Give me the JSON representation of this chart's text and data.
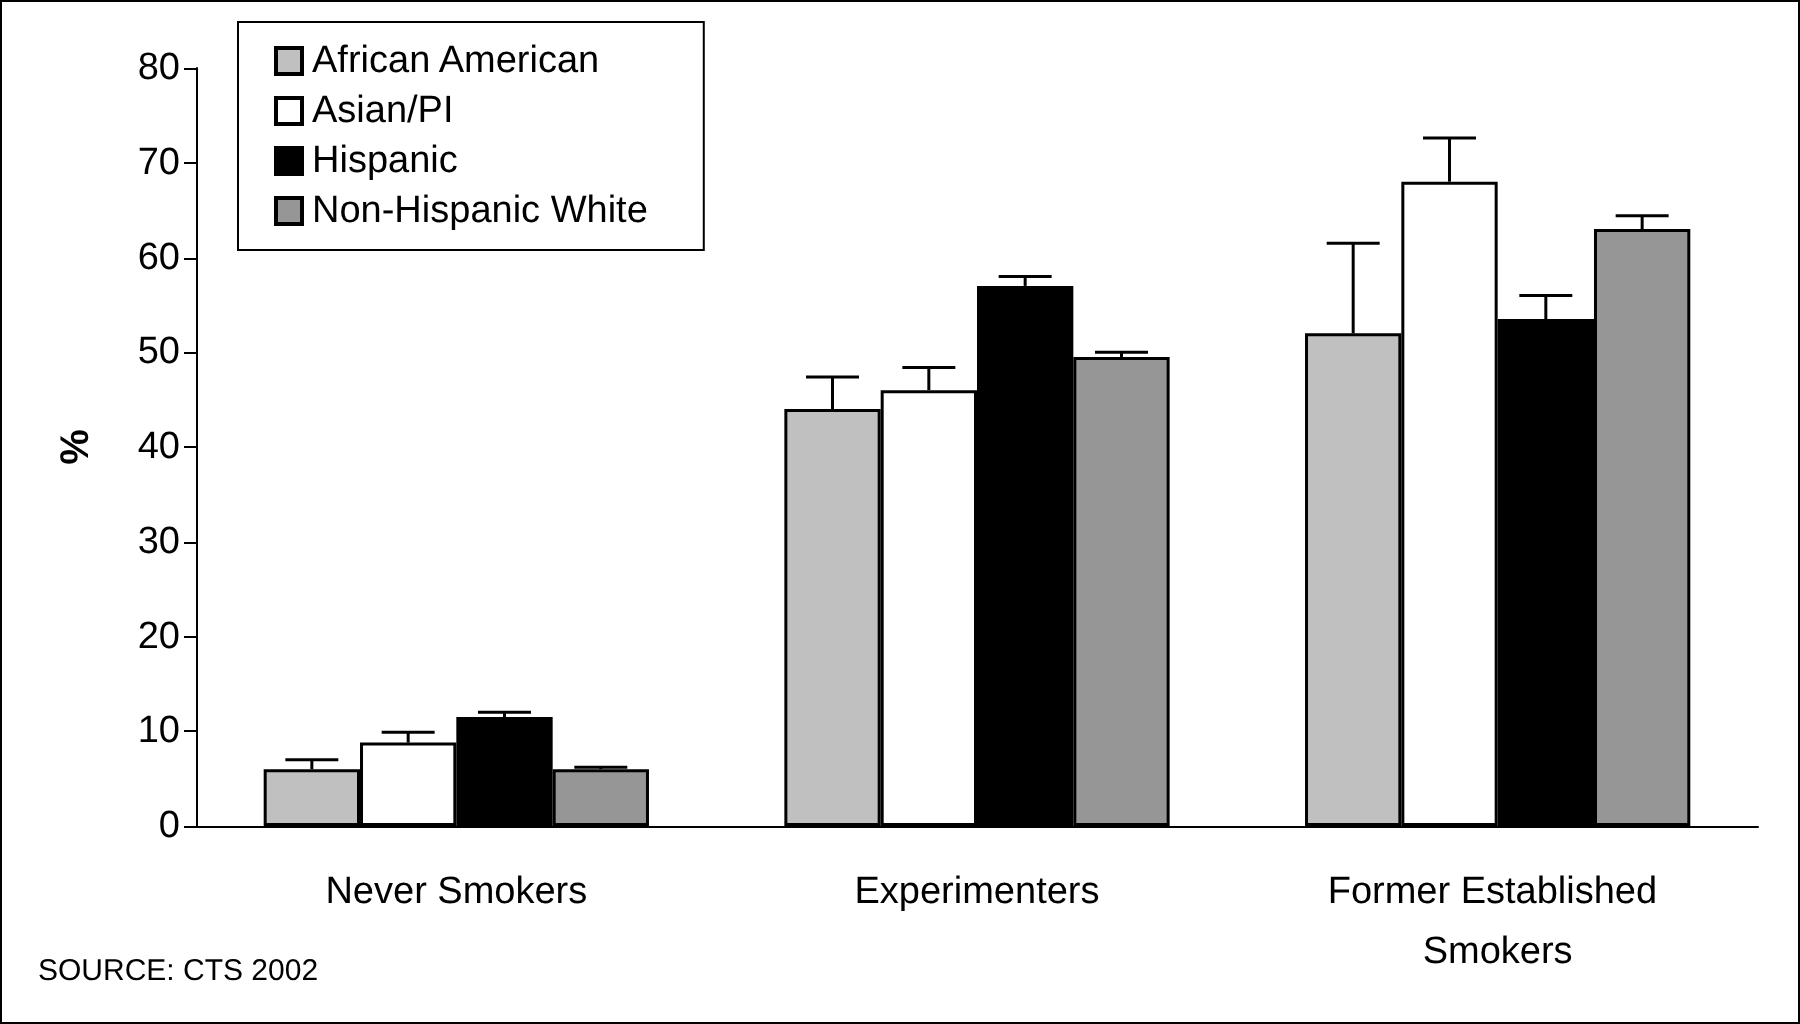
{
  "chart_data": {
    "type": "bar",
    "ylabel": "%",
    "categories": [
      "Never Smokers",
      "Experimenters",
      "Former Established Smokers"
    ],
    "series": [
      {
        "name": "African American",
        "color": "#c0c0c0",
        "values": [
          6,
          44,
          52
        ],
        "errors": [
          1,
          3.4,
          9.5
        ]
      },
      {
        "name": "Asian/PI",
        "color": "#ffffff",
        "values": [
          8.8,
          46,
          68
        ],
        "errors": [
          1.1,
          2.4,
          4.6
        ]
      },
      {
        "name": "Hispanic",
        "color": "#000000",
        "values": [
          11.5,
          57,
          53.5
        ],
        "errors": [
          0.5,
          1,
          2.5
        ]
      },
      {
        "name": "Non-Hispanic White",
        "color": "#969696",
        "values": [
          6,
          49.5,
          63
        ],
        "errors": [
          0.2,
          0.5,
          1.4
        ]
      }
    ],
    "ylim": [
      0,
      80
    ],
    "yticks": [
      0,
      10,
      20,
      30,
      40,
      50,
      60,
      70,
      80
    ],
    "grid": false,
    "legend": "top left",
    "annotations": [
      "SOURCE: CTS 2002"
    ]
  }
}
